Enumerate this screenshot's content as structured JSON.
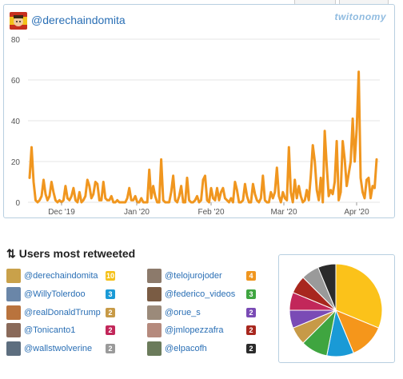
{
  "header": {
    "handle": "@derechaindomita",
    "logo_text": "twitonomy"
  },
  "chart_data": {
    "type": "line",
    "color": "#f0961f",
    "ylim": [
      0,
      80
    ],
    "yticks": [
      0,
      20,
      40,
      60,
      80
    ],
    "xtick_labels": [
      "Dec '19",
      "Jan '20",
      "Feb '20",
      "Mar '20",
      "Apr '20"
    ],
    "title": "",
    "xlabel": "",
    "ylabel": "",
    "values": [
      12,
      27,
      10,
      1,
      0,
      1,
      3,
      11,
      4,
      1,
      3,
      10,
      5,
      1,
      0,
      1,
      0,
      1,
      8,
      2,
      1,
      3,
      7,
      1,
      0,
      5,
      0,
      1,
      3,
      11,
      8,
      2,
      4,
      10,
      9,
      1,
      1,
      10,
      2,
      1,
      1,
      3,
      0,
      0,
      1,
      0,
      0,
      0,
      0,
      2,
      7,
      1,
      1,
      3,
      0,
      0,
      2,
      0,
      0,
      0,
      16,
      2,
      8,
      3,
      0,
      0,
      21,
      1,
      0,
      0,
      0,
      5,
      13,
      1,
      0,
      3,
      8,
      0,
      0,
      12,
      1,
      0,
      0,
      1,
      3,
      0,
      1,
      11,
      13,
      1,
      0,
      7,
      2,
      1,
      7,
      1,
      5,
      7,
      2,
      1,
      0,
      2,
      0,
      10,
      6,
      0,
      0,
      1,
      9,
      3,
      0,
      0,
      9,
      4,
      1,
      0,
      2,
      13,
      1,
      0,
      0,
      5,
      2,
      5,
      17,
      3,
      0,
      5,
      2,
      1,
      27,
      5,
      0,
      11,
      2,
      8,
      3,
      0,
      1,
      6,
      1,
      13,
      28,
      20,
      6,
      1,
      12,
      0,
      35,
      18,
      3,
      6,
      4,
      10,
      30,
      1,
      5,
      30,
      21,
      8,
      14,
      20,
      41,
      20,
      36,
      64,
      12,
      5,
      2,
      11,
      12,
      2,
      8,
      7,
      21
    ]
  },
  "users_section": {
    "title": "Users most retweeted",
    "left_column": [
      {
        "handle": "@derechaindomita",
        "count": "10",
        "color": "#f5c21b"
      },
      {
        "handle": "@WillyTolerdoo",
        "count": "3",
        "color": "#1a9ad6"
      },
      {
        "handle": "@realDonaldTrump",
        "count": "2",
        "color": "#c79a47"
      },
      {
        "handle": "@Tonicanto1",
        "count": "2",
        "color": "#c2275a"
      },
      {
        "handle": "@wallstwolverine",
        "count": "2",
        "color": "#9a9a9a"
      }
    ],
    "right_column": [
      {
        "handle": "@telojurojoder",
        "count": "4",
        "color": "#f0961f"
      },
      {
        "handle": "@federico_videos",
        "count": "3",
        "color": "#3fa540"
      },
      {
        "handle": "@orue_s",
        "count": "2",
        "color": "#7a4bb5"
      },
      {
        "handle": "@jmlopezzafra",
        "count": "2",
        "color": "#a8271e"
      },
      {
        "handle": "@elpacofh",
        "count": "2",
        "color": "#2b2b2b"
      }
    ]
  },
  "pie_data": {
    "type": "pie",
    "slices": [
      {
        "label": "@derechaindomita",
        "value": 10,
        "color": "#fbc21a"
      },
      {
        "label": "@telojurojoder",
        "value": 4,
        "color": "#f5961b"
      },
      {
        "label": "@WillyTolerdoo",
        "value": 3,
        "color": "#1a9ad6"
      },
      {
        "label": "@federico_videos",
        "value": 3,
        "color": "#3fa540"
      },
      {
        "label": "@realDonaldTrump",
        "value": 2,
        "color": "#c79a47"
      },
      {
        "label": "@orue_s",
        "value": 2,
        "color": "#7a4bb5"
      },
      {
        "label": "@Tonicanto1",
        "value": 2,
        "color": "#c2275a"
      },
      {
        "label": "@jmlopezzafra",
        "value": 2,
        "color": "#a8271e"
      },
      {
        "label": "@wallstwolverine",
        "value": 2,
        "color": "#9a9a9a"
      },
      {
        "label": "@elpacofh",
        "value": 2,
        "color": "#2b2b2b"
      }
    ]
  }
}
